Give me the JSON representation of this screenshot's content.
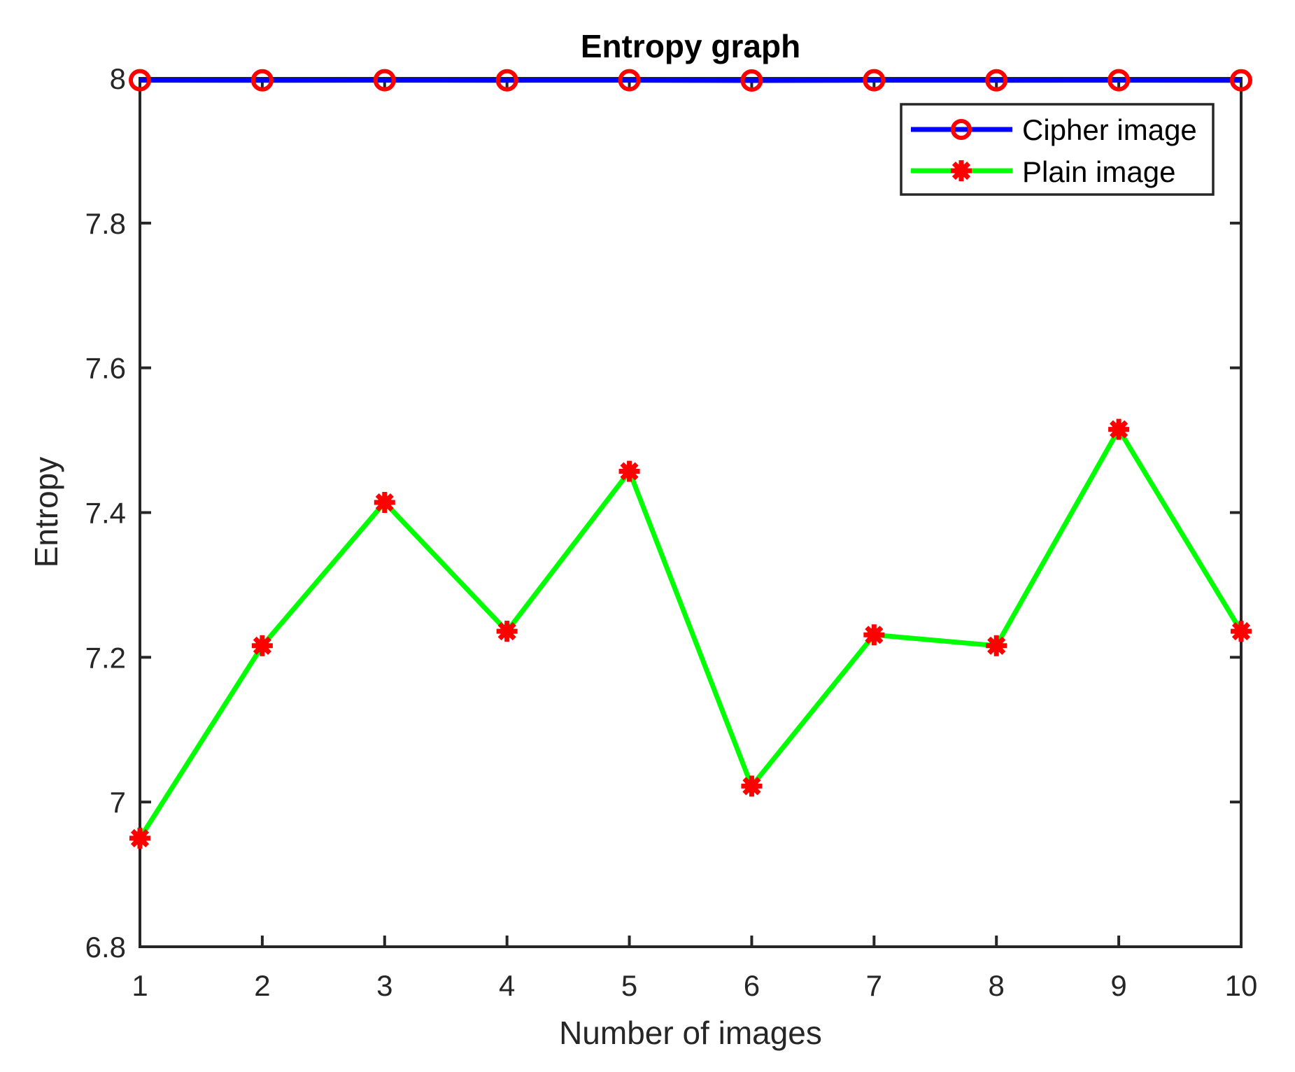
{
  "chart_data": {
    "type": "line",
    "title": "Entropy graph",
    "xlabel": "Number of images",
    "ylabel": "Entropy",
    "x": [
      1,
      2,
      3,
      4,
      5,
      6,
      7,
      8,
      9,
      10
    ],
    "xlim": [
      1,
      10
    ],
    "ylim": [
      6.8,
      8.0
    ],
    "xticks": [
      "1",
      "2",
      "3",
      "4",
      "5",
      "6",
      "7",
      "8",
      "9",
      "10"
    ],
    "yticks": [
      "6.8",
      "7",
      "7.2",
      "7.4",
      "7.6",
      "7.8",
      "8"
    ],
    "ytick_values": [
      6.8,
      7.0,
      7.2,
      7.4,
      7.6,
      7.8,
      8.0
    ],
    "grid": false,
    "legend_position": "northeast",
    "series": [
      {
        "name": "Cipher image",
        "values": [
          7.9975,
          7.9974,
          7.9975,
          7.9974,
          7.9975,
          7.9971,
          7.9975,
          7.9974,
          7.9975,
          7.9974
        ],
        "line_color": "#0000ff",
        "marker": "circle",
        "marker_color": "#ff0000"
      },
      {
        "name": "Plain image",
        "values": [
          6.95,
          7.216,
          7.414,
          7.236,
          7.457,
          7.022,
          7.231,
          7.216,
          7.515,
          7.236
        ],
        "line_color": "#00ff00",
        "marker": "asterisk",
        "marker_color": "#ff0000"
      }
    ]
  },
  "colors": {
    "axis": "#262626",
    "background": "#ffffff"
  }
}
